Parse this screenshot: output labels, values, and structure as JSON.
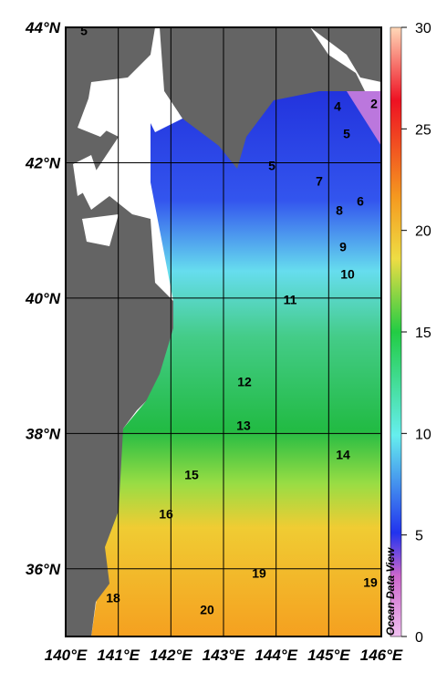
{
  "map": {
    "xlim": [
      140,
      146
    ],
    "ylim": [
      35,
      44
    ],
    "xticks": [
      {
        "value": 140,
        "label": "140°E"
      },
      {
        "value": 141,
        "label": "141°E"
      },
      {
        "value": 142,
        "label": "142°E"
      },
      {
        "value": 143,
        "label": "143°E"
      },
      {
        "value": 144,
        "label": "144°E"
      },
      {
        "value": 145,
        "label": "145°E"
      },
      {
        "value": 146,
        "label": "146°E"
      }
    ],
    "yticks": [
      {
        "value": 36,
        "label": "36°N"
      },
      {
        "value": 38,
        "label": "38°N"
      },
      {
        "value": 40,
        "label": "40°N"
      },
      {
        "value": 42,
        "label": "42°N"
      },
      {
        "value": 44,
        "label": "44°N"
      }
    ],
    "colorbar": {
      "lim": [
        0,
        30
      ],
      "ticks": [
        0,
        5,
        10,
        15,
        20,
        25,
        30
      ]
    },
    "contour_labels": [
      5,
      2,
      4,
      5,
      5,
      7,
      6,
      8,
      9,
      10,
      11,
      12,
      13,
      14,
      15,
      16,
      19,
      19,
      18,
      20
    ],
    "watermark": "Ocean Data View"
  }
}
